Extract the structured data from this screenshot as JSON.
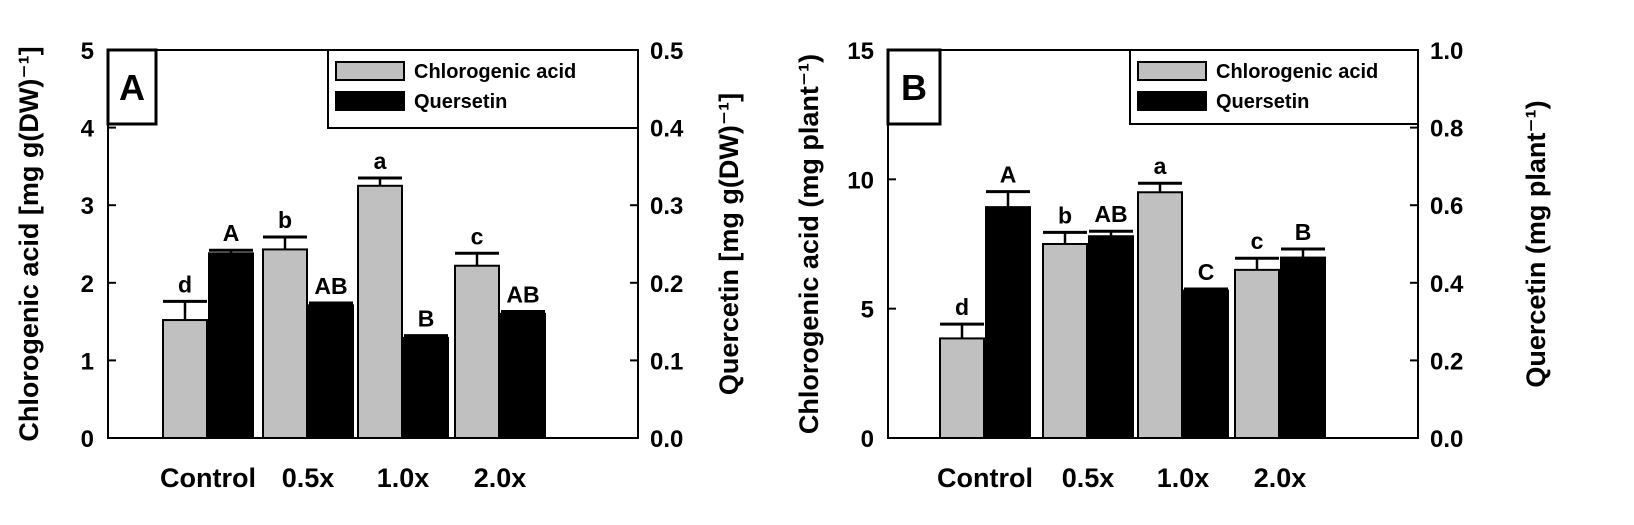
{
  "chart_data": [
    {
      "type": "bar",
      "panel_label": "A",
      "categories": [
        "Control",
        "0.5x",
        "1.0x",
        "2.0x"
      ],
      "left_axis": {
        "label": "Chlorogenic acid [mg g(DW)⁻¹]",
        "ylim": [
          0,
          5
        ],
        "ticks": [
          "0",
          "1",
          "2",
          "3",
          "4",
          "5"
        ]
      },
      "right_axis": {
        "label": "Quercetin [mg g(DW)⁻¹]",
        "ylim": [
          0,
          0.5
        ],
        "ticks": [
          "0.0",
          "0.1",
          "0.2",
          "0.3",
          "0.4",
          "0.5"
        ]
      },
      "series": [
        {
          "name": "Chlorogenic acid",
          "axis": "left",
          "color": "#c0c0c0",
          "values": [
            1.52,
            2.43,
            3.25,
            2.22
          ],
          "errors": [
            0.24,
            0.16,
            0.1,
            0.16
          ],
          "letters": [
            "d",
            "b",
            "a",
            "c"
          ]
        },
        {
          "name": "Quersetin",
          "axis": "right",
          "color": "#000000",
          "values": [
            0.238,
            0.171,
            0.129,
            0.16
          ],
          "errors": [
            0.004,
            0.003,
            0.003,
            0.003
          ],
          "letters": [
            "A",
            "AB",
            "B",
            "AB"
          ]
        }
      ],
      "grid": false,
      "legend_position": "top-right"
    },
    {
      "type": "bar",
      "panel_label": "B",
      "categories": [
        "Control",
        "0.5x",
        "1.0x",
        "2.0x"
      ],
      "left_axis": {
        "label": "Chlorogenic acid (mg plant⁻¹)",
        "ylim": [
          0,
          15
        ],
        "ticks": [
          "0",
          "5",
          "10",
          "15"
        ]
      },
      "right_axis": {
        "label": "Quercetin (mg plant⁻¹)",
        "ylim": [
          0,
          1.0
        ],
        "ticks": [
          "0.0",
          "0.2",
          "0.4",
          "0.6",
          "0.8",
          "1.0"
        ]
      },
      "series": [
        {
          "name": "Chlorogenic acid",
          "axis": "left",
          "color": "#c0c0c0",
          "values": [
            3.85,
            7.5,
            9.5,
            6.5
          ],
          "errors": [
            0.55,
            0.45,
            0.35,
            0.45
          ],
          "letters": [
            "d",
            "b",
            "a",
            "c"
          ]
        },
        {
          "name": "Quersetin",
          "axis": "right",
          "color": "#000000",
          "values": [
            0.595,
            0.52,
            0.38,
            0.465
          ],
          "errors": [
            0.04,
            0.013,
            0.004,
            0.022
          ],
          "letters": [
            "A",
            "AB",
            "C",
            "B"
          ]
        }
      ],
      "grid": false,
      "legend_position": "top-right"
    }
  ]
}
